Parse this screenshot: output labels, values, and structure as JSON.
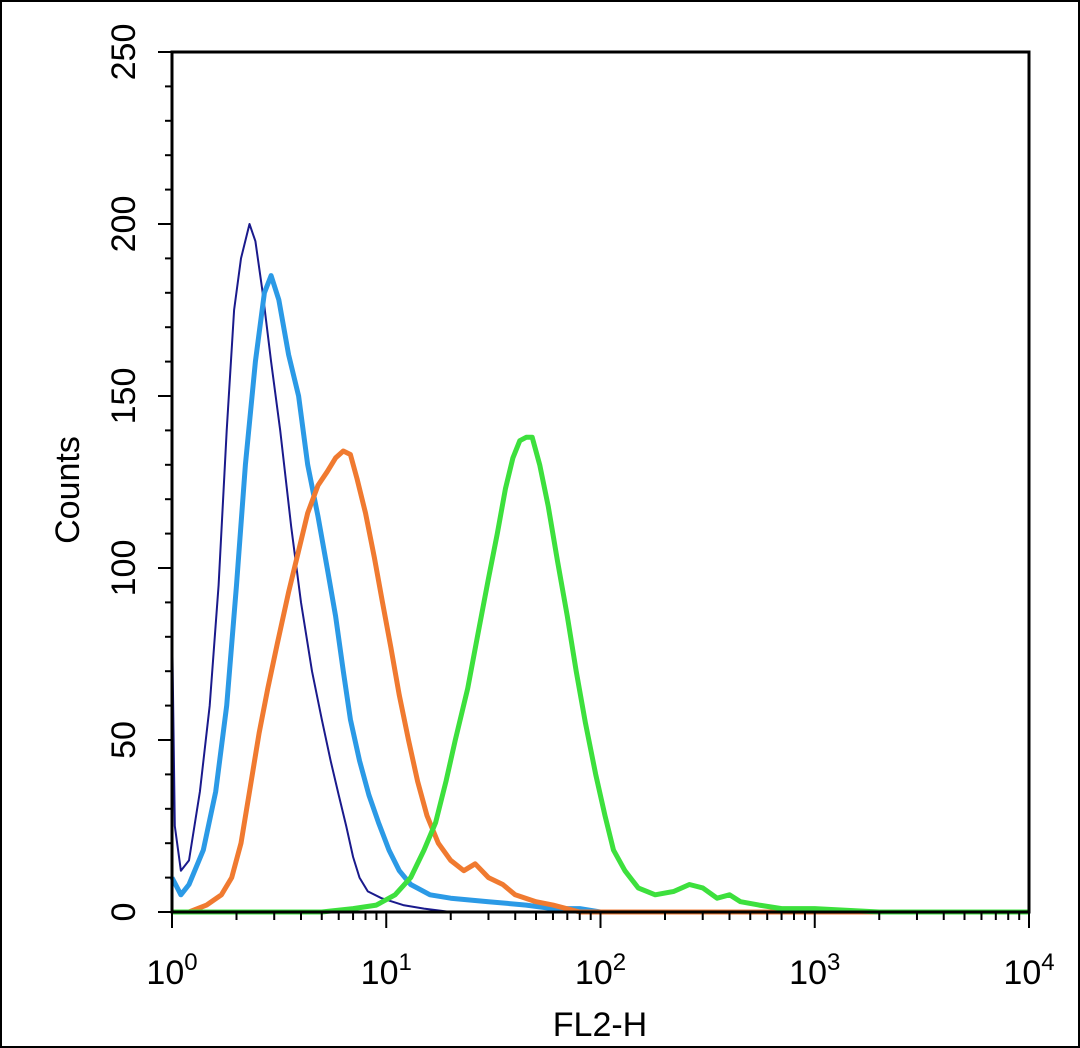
{
  "chart_data": {
    "type": "line",
    "title": "",
    "xlabel": "FL2-H",
    "ylabel": "Counts",
    "x_scale": "log",
    "xlim": [
      1,
      10000
    ],
    "ylim": [
      0,
      250
    ],
    "grid": false,
    "x_ticks": [
      {
        "value": 1,
        "base": "10",
        "exp": "0"
      },
      {
        "value": 10,
        "base": "10",
        "exp": "1"
      },
      {
        "value": 100,
        "base": "10",
        "exp": "2"
      },
      {
        "value": 1000,
        "base": "10",
        "exp": "3"
      },
      {
        "value": 10000,
        "base": "10",
        "exp": "4"
      }
    ],
    "y_ticks": [
      {
        "value": 0,
        "label": "0"
      },
      {
        "value": 50,
        "label": "50"
      },
      {
        "value": 100,
        "label": "100"
      },
      {
        "value": 150,
        "label": "150"
      },
      {
        "value": 200,
        "label": "200"
      },
      {
        "value": 250,
        "label": "250"
      }
    ],
    "series": [
      {
        "color": "#1a1a8c",
        "points": [
          [
            1.0,
            85
          ],
          [
            1.03,
            25
          ],
          [
            1.1,
            12
          ],
          [
            1.2,
            15
          ],
          [
            1.35,
            35
          ],
          [
            1.5,
            60
          ],
          [
            1.65,
            95
          ],
          [
            1.8,
            140
          ],
          [
            1.95,
            175
          ],
          [
            2.1,
            190
          ],
          [
            2.3,
            200
          ],
          [
            2.45,
            195
          ],
          [
            2.65,
            180
          ],
          [
            2.9,
            160
          ],
          [
            3.2,
            140
          ],
          [
            3.6,
            112
          ],
          [
            4.0,
            90
          ],
          [
            4.5,
            70
          ],
          [
            5.0,
            56
          ],
          [
            5.5,
            44
          ],
          [
            6.0,
            34
          ],
          [
            6.5,
            25
          ],
          [
            7.0,
            16
          ],
          [
            7.5,
            10
          ],
          [
            8.2,
            6
          ],
          [
            9.5,
            4
          ],
          [
            12,
            2
          ],
          [
            15,
            1
          ],
          [
            20,
            0
          ],
          [
            30,
            0
          ],
          [
            100,
            0
          ]
        ]
      },
      {
        "color": "#2b9ae6",
        "points": [
          [
            1.0,
            10
          ],
          [
            1.1,
            5
          ],
          [
            1.2,
            8
          ],
          [
            1.4,
            18
          ],
          [
            1.6,
            35
          ],
          [
            1.8,
            60
          ],
          [
            2.0,
            95
          ],
          [
            2.2,
            130
          ],
          [
            2.45,
            160
          ],
          [
            2.7,
            180
          ],
          [
            2.9,
            185
          ],
          [
            3.15,
            178
          ],
          [
            3.5,
            162
          ],
          [
            3.9,
            150
          ],
          [
            4.3,
            130
          ],
          [
            4.8,
            115
          ],
          [
            5.3,
            100
          ],
          [
            5.8,
            86
          ],
          [
            6.3,
            70
          ],
          [
            6.8,
            56
          ],
          [
            7.5,
            44
          ],
          [
            8.3,
            34
          ],
          [
            9.2,
            26
          ],
          [
            10.3,
            18
          ],
          [
            11.5,
            12
          ],
          [
            13,
            8
          ],
          [
            16,
            5
          ],
          [
            20,
            4
          ],
          [
            30,
            3
          ],
          [
            45,
            2
          ],
          [
            60,
            1
          ],
          [
            80,
            1
          ],
          [
            100,
            0
          ],
          [
            10000,
            0
          ]
        ]
      },
      {
        "color": "#f07a30",
        "points": [
          [
            1.0,
            0
          ],
          [
            1.2,
            0
          ],
          [
            1.45,
            2
          ],
          [
            1.7,
            5
          ],
          [
            1.9,
            10
          ],
          [
            2.1,
            20
          ],
          [
            2.3,
            35
          ],
          [
            2.55,
            52
          ],
          [
            2.8,
            65
          ],
          [
            3.1,
            78
          ],
          [
            3.5,
            93
          ],
          [
            3.9,
            105
          ],
          [
            4.3,
            116
          ],
          [
            4.8,
            124
          ],
          [
            5.3,
            128
          ],
          [
            5.8,
            132
          ],
          [
            6.3,
            134
          ],
          [
            6.8,
            133
          ],
          [
            7.3,
            126
          ],
          [
            8.0,
            116
          ],
          [
            8.8,
            103
          ],
          [
            9.6,
            90
          ],
          [
            10.5,
            77
          ],
          [
            11.5,
            63
          ],
          [
            12.7,
            50
          ],
          [
            14,
            38
          ],
          [
            15.5,
            28
          ],
          [
            17.5,
            20
          ],
          [
            20,
            15
          ],
          [
            23,
            12
          ],
          [
            26,
            14
          ],
          [
            30,
            10
          ],
          [
            35,
            8
          ],
          [
            40,
            5
          ],
          [
            50,
            3
          ],
          [
            60,
            2
          ],
          [
            80,
            0
          ],
          [
            100,
            0
          ],
          [
            10000,
            0
          ]
        ]
      },
      {
        "color": "#3de03d",
        "points": [
          [
            1.0,
            0
          ],
          [
            3,
            0
          ],
          [
            5,
            0
          ],
          [
            7,
            1
          ],
          [
            9,
            2
          ],
          [
            11,
            5
          ],
          [
            13,
            10
          ],
          [
            15,
            18
          ],
          [
            17,
            26
          ],
          [
            19,
            38
          ],
          [
            21,
            50
          ],
          [
            24,
            65
          ],
          [
            27,
            82
          ],
          [
            30,
            97
          ],
          [
            33,
            110
          ],
          [
            36,
            123
          ],
          [
            39,
            132
          ],
          [
            42,
            137
          ],
          [
            45,
            138
          ],
          [
            48,
            138
          ],
          [
            52,
            130
          ],
          [
            57,
            118
          ],
          [
            63,
            102
          ],
          [
            70,
            86
          ],
          [
            77,
            70
          ],
          [
            85,
            55
          ],
          [
            95,
            40
          ],
          [
            105,
            28
          ],
          [
            115,
            18
          ],
          [
            130,
            12
          ],
          [
            150,
            7
          ],
          [
            180,
            5
          ],
          [
            220,
            6
          ],
          [
            260,
            8
          ],
          [
            300,
            7
          ],
          [
            350,
            4
          ],
          [
            400,
            5
          ],
          [
            450,
            3
          ],
          [
            550,
            2
          ],
          [
            700,
            1
          ],
          [
            1000,
            1
          ],
          [
            2000,
            0
          ],
          [
            10000,
            0
          ]
        ]
      }
    ]
  }
}
